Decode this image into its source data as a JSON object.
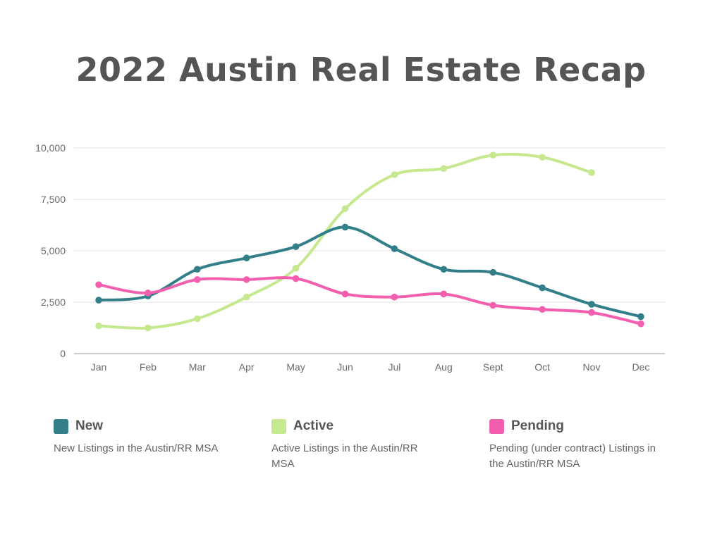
{
  "title": "2022 Austin Real Estate Recap",
  "chart_data": {
    "type": "line",
    "title": "2022 Austin Real Estate Recap",
    "categories": [
      "Jan",
      "Feb",
      "Mar",
      "Apr",
      "May",
      "Jun",
      "Jul",
      "Aug",
      "Sept",
      "Oct",
      "Nov",
      "Dec"
    ],
    "ylim": [
      0,
      10000
    ],
    "yticks": [
      0,
      2500,
      5000,
      7500,
      10000
    ],
    "ytick_labels": [
      "0",
      "2,500",
      "5,000",
      "7,500",
      "10,000"
    ],
    "grid": true,
    "series": [
      {
        "name": "New",
        "color": "#327f8a",
        "values": [
          2600,
          2800,
          4100,
          4650,
          5200,
          6150,
          5100,
          4100,
          3950,
          3200,
          2400,
          1800
        ]
      },
      {
        "name": "Active",
        "color": "#c6e88f",
        "values": [
          1350,
          1250,
          1700,
          2750,
          4150,
          7050,
          8700,
          9000,
          9650,
          9550,
          8800,
          null
        ]
      },
      {
        "name": "Pending",
        "color": "#f25fae",
        "values": [
          3350,
          2950,
          3600,
          3600,
          3650,
          2900,
          2750,
          2900,
          2350,
          2150,
          2000,
          1450
        ]
      }
    ]
  },
  "legend": [
    {
      "name": "New",
      "color": "#327f8a",
      "description": "New Listings in the Austin/RR MSA"
    },
    {
      "name": "Active",
      "color": "#c6e88f",
      "description": "Active Listings in the Austin/RR MSA"
    },
    {
      "name": "Pending",
      "color": "#f25fae",
      "description": "Pending (under contract) Listings in the Austin/RR MSA"
    }
  ]
}
